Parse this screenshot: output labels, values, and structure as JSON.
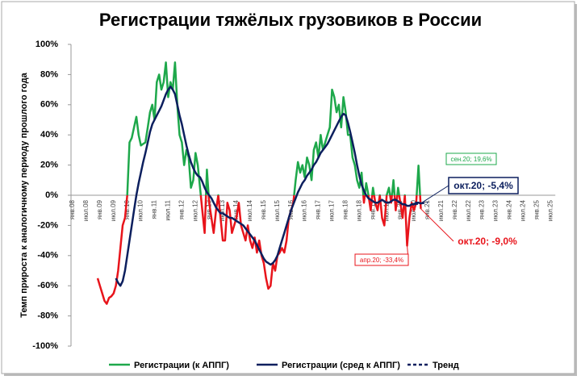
{
  "chart_data": {
    "type": "line",
    "title": "Регистрации тяжёлых грузовиков в России",
    "y_label": "Темп прироста к аналогичному периоду прошлого года",
    "categories": [
      "янв.08",
      null,
      null,
      null,
      null,
      null,
      "июл.08",
      null,
      null,
      null,
      null,
      null,
      "янв.09",
      null,
      null,
      null,
      null,
      null,
      "июл.09",
      null,
      null,
      null,
      null,
      null,
      "янв.10",
      null,
      null,
      null,
      null,
      null,
      "июл.10",
      null,
      null,
      null,
      null,
      null,
      "янв.11",
      null,
      null,
      null,
      null,
      null,
      "июл.11",
      null,
      null,
      null,
      null,
      null,
      "янв.12",
      null,
      null,
      null,
      null,
      null,
      "июл.12",
      null,
      null,
      null,
      null,
      null,
      "янв.13",
      null,
      null,
      null,
      null,
      null,
      "июл.13",
      null,
      null,
      null,
      null,
      null,
      "янв.14",
      null,
      null,
      null,
      null,
      null,
      "июл.14",
      null,
      null,
      null,
      null,
      null,
      "янв.15",
      null,
      null,
      null,
      null,
      null,
      "июл.15",
      null,
      null,
      null,
      null,
      null,
      "янв.16",
      null,
      null,
      null,
      null,
      null,
      "июл.16",
      null,
      null,
      null,
      null,
      null,
      "янв.17",
      null,
      null,
      null,
      null,
      null,
      "июл.17",
      null,
      null,
      null,
      null,
      null,
      "янв.18",
      null,
      null,
      null,
      null,
      null,
      "июл.18",
      null,
      null,
      null,
      null,
      null,
      "янв.19",
      null,
      null,
      null,
      null,
      null,
      "июл.19",
      null,
      null,
      null,
      null,
      null,
      "янв.20",
      null,
      null,
      null,
      null,
      null,
      "июл.20",
      null,
      null,
      null,
      null,
      null,
      "янв.21",
      null,
      null,
      null,
      null,
      null,
      "июл.21",
      null,
      null,
      null,
      null,
      null,
      "янв.22",
      null,
      null,
      null,
      null,
      null,
      "июл.22",
      null,
      null,
      null,
      null,
      null,
      "янв.23",
      null,
      null,
      null,
      null,
      null,
      "июл.23",
      null,
      null,
      null,
      null,
      null,
      "янв.24",
      null,
      null,
      null,
      null,
      null,
      "июл.24",
      null,
      null,
      null,
      null,
      null,
      "янв.25",
      null,
      null,
      null,
      null,
      null,
      "июл.25"
    ],
    "series": [
      {
        "name": "Регистрации (к АППГ)",
        "color": "#1ea84b",
        "negative_color": "#e8141b",
        "values": [
          null,
          null,
          null,
          null,
          null,
          null,
          null,
          null,
          null,
          null,
          null,
          -55,
          -60,
          -65,
          -70,
          -72,
          -68,
          -67,
          -65,
          -60,
          -50,
          -35,
          -20,
          -15,
          0,
          35,
          38,
          45,
          52,
          40,
          33,
          34,
          35,
          45,
          55,
          60,
          50,
          75,
          80,
          70,
          75,
          88,
          65,
          75,
          70,
          88,
          60,
          40,
          35,
          20,
          30,
          25,
          5,
          10,
          28,
          20,
          5,
          -10,
          -25,
          17,
          -5,
          -15,
          -25,
          -10,
          0,
          -15,
          -30,
          -30,
          -5,
          -10,
          -25,
          -20,
          -15,
          -5,
          -20,
          -25,
          -30,
          -20,
          -30,
          -35,
          -28,
          -38,
          -30,
          -40,
          -45,
          -55,
          -62,
          -60,
          -45,
          -50,
          -40,
          -38,
          -35,
          -38,
          -30,
          -15,
          -10,
          -5,
          10,
          22,
          15,
          20,
          12,
          25,
          20,
          10,
          30,
          35,
          25,
          40,
          30,
          35,
          40,
          45,
          70,
          65,
          55,
          60,
          45,
          65,
          55,
          40,
          40,
          25,
          20,
          10,
          5,
          15,
          -5,
          8,
          0,
          -10,
          5,
          -5,
          -10,
          0,
          -15,
          -20,
          0,
          5,
          -5,
          10,
          -10,
          5,
          -5,
          -15,
          0,
          -33.4,
          -15,
          -5,
          -10,
          -5,
          19.6,
          -9,
          null,
          null,
          null,
          null,
          null,
          null,
          null,
          null,
          null,
          null,
          null,
          null,
          null,
          null,
          null,
          null,
          null,
          null,
          null,
          null,
          null,
          null,
          null,
          null,
          null,
          null,
          null,
          null,
          null,
          null,
          null,
          null,
          null,
          null,
          null,
          null,
          null,
          null,
          null,
          null,
          null,
          null,
          null,
          null,
          null,
          null,
          null,
          null,
          null,
          null,
          null,
          null,
          null,
          null,
          null,
          null,
          null
        ]
      },
      {
        "name": "Регистрации (сред к АППГ)",
        "color": "#0c1f5e",
        "values": [
          null,
          null,
          null,
          null,
          null,
          null,
          null,
          null,
          null,
          null,
          null,
          null,
          null,
          null,
          null,
          null,
          null,
          null,
          null,
          -55,
          -58,
          -60,
          -57,
          -50,
          -40,
          -30,
          -20,
          -10,
          0,
          8,
          15,
          22,
          28,
          35,
          42,
          47,
          50,
          53,
          56,
          59,
          63,
          67,
          70,
          72,
          70,
          67,
          60,
          53,
          47,
          40,
          33,
          27,
          22,
          18,
          15,
          13,
          12,
          9,
          5,
          2,
          0,
          -2,
          -5,
          -8,
          -10,
          -12,
          -12,
          -13,
          -14,
          -15,
          -15,
          -16,
          -17,
          -18,
          -19,
          -20,
          -22,
          -24,
          -26,
          -28,
          -30,
          -33,
          -36,
          -39,
          -42,
          -44,
          -45,
          -46,
          -45,
          -43,
          -40,
          -35,
          -30,
          -25,
          -20,
          -15,
          -10,
          -6,
          -2,
          2,
          5,
          8,
          10,
          13,
          15,
          17,
          20,
          22,
          25,
          28,
          30,
          32,
          34,
          37,
          40,
          43,
          46,
          49,
          52,
          54,
          53,
          48,
          42,
          35,
          28,
          20,
          13,
          7,
          3,
          0,
          -2,
          -3,
          -4,
          -5,
          -5,
          -4,
          -3,
          -4,
          -5,
          -5,
          -4,
          -3,
          -3,
          -4,
          -5,
          -6,
          -6,
          -7,
          -7,
          -6,
          -6,
          -5,
          -5,
          -5.4,
          null,
          null,
          null,
          null,
          null,
          null,
          null,
          null,
          null,
          null,
          null,
          null,
          null,
          null,
          null,
          null,
          null,
          null,
          null,
          null,
          null,
          null,
          null,
          null,
          null,
          null,
          null,
          null,
          null,
          null,
          null,
          null,
          null,
          null,
          null,
          null,
          null,
          null,
          null,
          null,
          null,
          null,
          null,
          null,
          null,
          null,
          null,
          null,
          null,
          null,
          null,
          null,
          null,
          null,
          null,
          null,
          null
        ]
      },
      {
        "name": "Тренд",
        "color": "#0c1f5e",
        "dash": true,
        "values": [
          null,
          null,
          null,
          null,
          null,
          null,
          null,
          null,
          null,
          null,
          null,
          null,
          null,
          null,
          null,
          null,
          null,
          null,
          null,
          null,
          null,
          null,
          null,
          null,
          null,
          null,
          null,
          null,
          null,
          null,
          null,
          null,
          null,
          null,
          null,
          null,
          null,
          null,
          null,
          null,
          null,
          null,
          null,
          null,
          null,
          null,
          null,
          null,
          null,
          null,
          null,
          null,
          null,
          null,
          null,
          null,
          null,
          null,
          null,
          null,
          null,
          null,
          null,
          null,
          null,
          null,
          null,
          null,
          null,
          null,
          null,
          null,
          null,
          null,
          null,
          null,
          null,
          null,
          null,
          null,
          null,
          null,
          null,
          null,
          null,
          null,
          null,
          null,
          null,
          null,
          null,
          null,
          null,
          null,
          null,
          null,
          null,
          null,
          null,
          null,
          null,
          null,
          null,
          null,
          null,
          null,
          null,
          null,
          null,
          null,
          null,
          null,
          null,
          null,
          null,
          null,
          null,
          null,
          null,
          null,
          null,
          null,
          null,
          null,
          null,
          null,
          null,
          null,
          null,
          null,
          null,
          null,
          null,
          null,
          null,
          null,
          null,
          null,
          null,
          null,
          null,
          null,
          null,
          null,
          null,
          null,
          null,
          null,
          null,
          null,
          -6,
          -5.8,
          -5.6,
          -5.4,
          -5.2,
          -5,
          -4.8,
          null,
          null,
          null,
          null,
          null,
          null,
          null,
          null,
          null,
          null,
          null,
          null,
          null,
          null,
          null,
          null,
          null,
          null,
          null,
          null,
          null,
          null,
          null,
          null,
          null,
          null,
          null,
          null,
          null,
          null,
          null,
          null,
          null,
          null,
          null,
          null,
          null,
          null,
          null,
          null,
          null,
          null,
          null,
          null,
          null,
          null,
          null,
          null,
          null,
          null,
          null,
          null,
          null,
          null
        ]
      }
    ],
    "ylim": [
      -100,
      100
    ],
    "yticks": [
      {
        "value": -100,
        "label": "-100%"
      },
      {
        "value": -80,
        "label": "-80%"
      },
      {
        "value": -60,
        "label": "-60%"
      },
      {
        "value": -40,
        "label": "-40%"
      },
      {
        "value": -20,
        "label": "-20%"
      },
      {
        "value": 0,
        "label": "0%"
      },
      {
        "value": 20,
        "label": "20%"
      },
      {
        "value": 40,
        "label": "40%"
      },
      {
        "value": 60,
        "label": "60%"
      },
      {
        "value": 80,
        "label": "80%"
      },
      {
        "value": 100,
        "label": "100%"
      }
    ],
    "grid": false,
    "legend": "bottom",
    "annotations": [
      {
        "text": "сен.20; 19,6%",
        "color": "#1ea84b"
      },
      {
        "text": "окт.20; -5,4%",
        "color": "#0c1f5e"
      },
      {
        "text": "окт.20; -9,0%",
        "color": "#e8141b"
      },
      {
        "text": "апр.20; -33,4%",
        "color": "#e8141b"
      }
    ]
  }
}
